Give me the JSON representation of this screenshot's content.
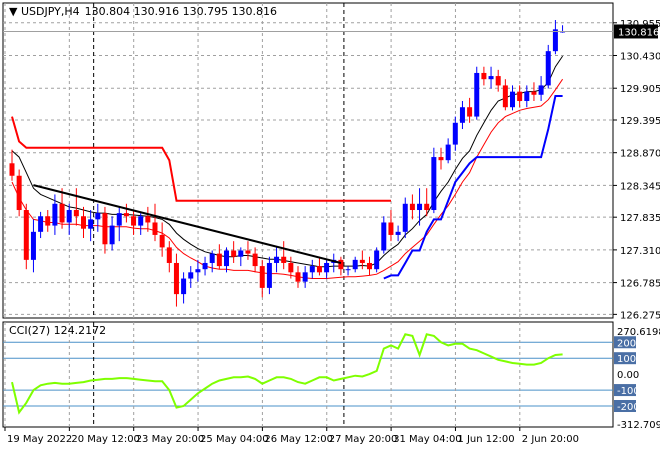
{
  "header": {
    "symbol": "USDJPY,H4",
    "ohlc": "130.804 130.916 130.795 130.816"
  },
  "chart_data": [
    {
      "type": "candlestick",
      "title": "USDJPY,H4 130.804 130.916 130.795 130.816",
      "ylim": [
        126.275,
        131.0
      ],
      "last_price": "130.816",
      "y_ticks": [
        "130.955",
        "130.430",
        "129.905",
        "129.395",
        "128.870",
        "128.345",
        "127.835",
        "127.310",
        "126.785",
        "126.275"
      ],
      "x_ticks": [
        "19 May 2022",
        "20 May 12:00",
        "23 May 20:00",
        "25 May 04:00",
        "26 May 12:00",
        "27 May 20:00",
        "31 May 04:00",
        "1 Jun 12:00",
        "2 Jun 20:00"
      ],
      "candles": [
        {
          "o": 128.7,
          "h": 128.92,
          "l": 128.42,
          "c": 128.5
        },
        {
          "o": 128.5,
          "h": 128.6,
          "l": 127.85,
          "c": 127.95
        },
        {
          "o": 127.95,
          "h": 128.05,
          "l": 127.0,
          "c": 127.15
        },
        {
          "o": 127.15,
          "h": 127.8,
          "l": 126.95,
          "c": 127.6
        },
        {
          "o": 127.6,
          "h": 127.92,
          "l": 127.5,
          "c": 127.85
        },
        {
          "o": 127.85,
          "h": 127.95,
          "l": 127.6,
          "c": 127.7
        },
        {
          "o": 127.7,
          "h": 128.2,
          "l": 127.55,
          "c": 128.05
        },
        {
          "o": 128.05,
          "h": 128.3,
          "l": 127.65,
          "c": 127.75
        },
        {
          "o": 127.75,
          "h": 128.05,
          "l": 127.55,
          "c": 127.95
        },
        {
          "o": 127.95,
          "h": 128.3,
          "l": 127.7,
          "c": 127.85
        },
        {
          "o": 127.85,
          "h": 128.0,
          "l": 127.5,
          "c": 127.65
        },
        {
          "o": 127.65,
          "h": 127.95,
          "l": 127.45,
          "c": 127.8
        },
        {
          "o": 127.8,
          "h": 128.05,
          "l": 127.6,
          "c": 127.9
        },
        {
          "o": 127.9,
          "h": 128.0,
          "l": 127.25,
          "c": 127.4
        },
        {
          "o": 127.4,
          "h": 127.85,
          "l": 127.3,
          "c": 127.7
        },
        {
          "o": 127.7,
          "h": 128.0,
          "l": 127.45,
          "c": 127.9
        },
        {
          "o": 127.9,
          "h": 128.05,
          "l": 127.75,
          "c": 127.85
        },
        {
          "o": 127.85,
          "h": 127.95,
          "l": 127.55,
          "c": 127.7
        },
        {
          "o": 127.7,
          "h": 127.9,
          "l": 127.55,
          "c": 127.85
        },
        {
          "o": 127.85,
          "h": 128.0,
          "l": 127.6,
          "c": 127.75
        },
        {
          "o": 127.75,
          "h": 128.05,
          "l": 127.45,
          "c": 127.55
        },
        {
          "o": 127.55,
          "h": 127.75,
          "l": 127.2,
          "c": 127.35
        },
        {
          "o": 127.35,
          "h": 127.45,
          "l": 126.95,
          "c": 127.1
        },
        {
          "o": 127.1,
          "h": 127.25,
          "l": 126.4,
          "c": 126.6
        },
        {
          "o": 126.6,
          "h": 126.95,
          "l": 126.45,
          "c": 126.85
        },
        {
          "o": 126.85,
          "h": 127.05,
          "l": 126.7,
          "c": 126.95
        },
        {
          "o": 126.95,
          "h": 127.15,
          "l": 126.8,
          "c": 127.0
        },
        {
          "o": 127.0,
          "h": 127.2,
          "l": 126.9,
          "c": 127.1
        },
        {
          "o": 127.1,
          "h": 127.3,
          "l": 126.95,
          "c": 127.25
        },
        {
          "o": 127.25,
          "h": 127.4,
          "l": 127.0,
          "c": 127.05
        },
        {
          "o": 127.05,
          "h": 127.35,
          "l": 126.95,
          "c": 127.3
        },
        {
          "o": 127.3,
          "h": 127.45,
          "l": 127.1,
          "c": 127.2
        },
        {
          "o": 127.2,
          "h": 127.35,
          "l": 127.05,
          "c": 127.3
        },
        {
          "o": 127.3,
          "h": 127.45,
          "l": 127.15,
          "c": 127.25
        },
        {
          "o": 127.25,
          "h": 127.35,
          "l": 126.95,
          "c": 127.05
        },
        {
          "o": 127.05,
          "h": 127.15,
          "l": 126.55,
          "c": 126.7
        },
        {
          "o": 126.7,
          "h": 127.2,
          "l": 126.6,
          "c": 127.1
        },
        {
          "o": 127.1,
          "h": 127.35,
          "l": 126.95,
          "c": 127.2
        },
        {
          "o": 127.2,
          "h": 127.45,
          "l": 127.0,
          "c": 127.1
        },
        {
          "o": 127.1,
          "h": 127.2,
          "l": 126.85,
          "c": 126.95
        },
        {
          "o": 126.95,
          "h": 127.05,
          "l": 126.7,
          "c": 126.8
        },
        {
          "o": 126.8,
          "h": 127.05,
          "l": 126.7,
          "c": 126.95
        },
        {
          "o": 126.95,
          "h": 127.15,
          "l": 126.85,
          "c": 127.05
        },
        {
          "o": 127.05,
          "h": 127.2,
          "l": 126.9,
          "c": 126.95
        },
        {
          "o": 126.95,
          "h": 127.15,
          "l": 126.85,
          "c": 127.1
        },
        {
          "o": 127.1,
          "h": 127.25,
          "l": 126.95,
          "c": 127.15
        },
        {
          "o": 127.15,
          "h": 127.2,
          "l": 126.9,
          "c": 127.0
        },
        {
          "o": 127.0,
          "h": 127.05,
          "l": 126.9,
          "c": 127.0
        },
        {
          "o": 127.0,
          "h": 127.2,
          "l": 126.95,
          "c": 127.15
        },
        {
          "o": 127.15,
          "h": 127.3,
          "l": 127.0,
          "c": 127.1
        },
        {
          "o": 127.1,
          "h": 127.2,
          "l": 126.9,
          "c": 127.0
        },
        {
          "o": 127.0,
          "h": 127.35,
          "l": 126.95,
          "c": 127.3
        },
        {
          "o": 127.3,
          "h": 127.85,
          "l": 127.25,
          "c": 127.75
        },
        {
          "o": 127.75,
          "h": 127.95,
          "l": 127.45,
          "c": 127.55
        },
        {
          "o": 127.55,
          "h": 127.7,
          "l": 127.45,
          "c": 127.6
        },
        {
          "o": 127.6,
          "h": 128.15,
          "l": 127.5,
          "c": 128.05
        },
        {
          "o": 128.05,
          "h": 128.2,
          "l": 127.8,
          "c": 127.95
        },
        {
          "o": 127.95,
          "h": 128.3,
          "l": 127.7,
          "c": 128.05
        },
        {
          "o": 128.05,
          "h": 128.3,
          "l": 127.85,
          "c": 127.95
        },
        {
          "o": 127.95,
          "h": 128.95,
          "l": 127.9,
          "c": 128.8
        },
        {
          "o": 128.8,
          "h": 128.95,
          "l": 128.6,
          "c": 128.75
        },
        {
          "o": 128.75,
          "h": 129.1,
          "l": 128.7,
          "c": 129.0
        },
        {
          "o": 129.0,
          "h": 129.45,
          "l": 128.9,
          "c": 129.35
        },
        {
          "o": 129.35,
          "h": 129.7,
          "l": 129.25,
          "c": 129.6
        },
        {
          "o": 129.6,
          "h": 129.75,
          "l": 129.35,
          "c": 129.45
        },
        {
          "o": 129.45,
          "h": 130.25,
          "l": 129.4,
          "c": 130.15
        },
        {
          "o": 130.15,
          "h": 130.25,
          "l": 129.95,
          "c": 130.05
        },
        {
          "o": 130.05,
          "h": 130.25,
          "l": 129.9,
          "c": 130.1
        },
        {
          "o": 130.1,
          "h": 130.2,
          "l": 129.85,
          "c": 129.95
        },
        {
          "o": 129.95,
          "h": 130.05,
          "l": 129.55,
          "c": 129.6
        },
        {
          "o": 129.6,
          "h": 129.95,
          "l": 129.55,
          "c": 129.85
        },
        {
          "o": 129.85,
          "h": 129.95,
          "l": 129.6,
          "c": 129.7
        },
        {
          "o": 129.7,
          "h": 129.95,
          "l": 129.6,
          "c": 129.85
        },
        {
          "o": 129.85,
          "h": 130.0,
          "l": 129.7,
          "c": 129.8
        },
        {
          "o": 129.8,
          "h": 130.1,
          "l": 129.7,
          "c": 129.95
        },
        {
          "o": 129.95,
          "h": 130.6,
          "l": 129.9,
          "c": 130.5
        },
        {
          "o": 130.5,
          "h": 131.0,
          "l": 130.45,
          "c": 130.85
        },
        {
          "o": 130.804,
          "h": 130.916,
          "l": 130.795,
          "c": 130.816
        }
      ],
      "lines": [
        {
          "color": "#000000",
          "values": [
            128.9,
            128.8,
            128.55,
            128.3,
            128.2,
            128.15,
            128.1,
            128.05,
            128.0,
            127.98,
            127.95,
            127.92,
            127.9,
            127.9,
            127.88,
            127.88,
            127.88,
            127.87,
            127.86,
            127.85,
            127.83,
            127.8,
            127.72,
            127.58,
            127.48,
            127.4,
            127.33,
            127.28,
            127.25,
            127.22,
            127.2,
            127.2,
            127.22,
            127.22,
            127.2,
            127.18,
            127.16,
            127.16,
            127.14,
            127.12,
            127.1,
            127.08,
            127.06,
            127.04,
            127.04,
            127.05,
            127.05,
            127.05,
            127.05,
            127.06,
            127.05,
            127.1,
            127.22,
            127.32,
            127.4,
            127.55,
            127.65,
            127.78,
            127.88,
            128.08,
            128.25,
            128.4,
            128.6,
            128.78,
            128.9,
            129.15,
            129.35,
            129.55,
            129.7,
            129.75,
            129.8,
            129.82,
            129.85,
            129.85,
            129.88,
            130.0,
            130.25,
            130.42
          ]
        },
        {
          "color": "#ff0000",
          "values": [
            128.4,
            128.15,
            127.95,
            127.8,
            127.78,
            127.75,
            127.75,
            127.72,
            127.72,
            127.72,
            127.7,
            127.7,
            127.7,
            127.68,
            127.68,
            127.68,
            127.68,
            127.66,
            127.65,
            127.65,
            127.62,
            127.58,
            127.5,
            127.35,
            127.25,
            127.18,
            127.12,
            127.05,
            127.02,
            127.0,
            127.0,
            126.98,
            126.98,
            126.98,
            126.96,
            126.94,
            126.93,
            126.93,
            126.92,
            126.9,
            126.88,
            126.86,
            126.85,
            126.85,
            126.85,
            126.86,
            126.87,
            126.88,
            126.88,
            126.89,
            126.9,
            126.92,
            126.98,
            127.05,
            127.12,
            127.25,
            127.35,
            127.45,
            127.55,
            127.72,
            127.88,
            128.02,
            128.2,
            128.4,
            128.55,
            128.8,
            129.0,
            129.2,
            129.35,
            129.45,
            129.5,
            129.55,
            129.58,
            129.6,
            129.62,
            129.72,
            129.88,
            130.05
          ]
        },
        {
          "color": "#0000ff",
          "values": [
            null,
            null,
            null,
            null,
            null,
            null,
            null,
            null,
            null,
            null,
            null,
            null,
            null,
            null,
            null,
            null,
            null,
            null,
            null,
            null,
            null,
            null,
            null,
            null,
            null,
            null,
            null,
            null,
            null,
            null,
            null,
            null,
            null,
            null,
            null,
            null,
            null,
            null,
            null,
            null,
            null,
            null,
            null,
            null,
            null,
            null,
            null,
            null,
            null,
            null,
            null,
            null,
            126.85,
            126.9,
            126.9,
            127.1,
            127.3,
            127.3,
            127.6,
            127.8,
            127.8,
            128.1,
            128.4,
            128.55,
            128.7,
            128.8,
            128.8,
            128.8,
            128.8,
            128.8,
            128.8,
            128.8,
            128.8,
            128.8,
            128.8,
            129.25,
            129.78,
            129.78
          ]
        },
        {
          "color": "#ff0000",
          "values": [
            129.45,
            129.05,
            128.95,
            128.95,
            128.95,
            128.95,
            128.95,
            128.95,
            128.95,
            128.95,
            128.95,
            128.95,
            128.95,
            128.95,
            128.95,
            128.95,
            128.95,
            128.95,
            128.95,
            128.95,
            128.95,
            128.95,
            128.75,
            128.1,
            128.1,
            128.1,
            128.1,
            128.1,
            128.1,
            128.1,
            128.1,
            128.1,
            128.1,
            128.1,
            128.1,
            128.1,
            128.1,
            128.1,
            128.1,
            128.1,
            128.1,
            128.1,
            128.1,
            128.1,
            128.1,
            128.1,
            128.1,
            128.1,
            128.1,
            128.1,
            128.1,
            128.1,
            128.1,
            128.1,
            null,
            null,
            null,
            null,
            null,
            null,
            null,
            null,
            null,
            null,
            null,
            null,
            null,
            null,
            null,
            null,
            null,
            null,
            null,
            null,
            null,
            null,
            null,
            null
          ]
        }
      ],
      "trendline": {
        "color": "#000000",
        "from": {
          "i": 3,
          "v": 128.35
        },
        "to": {
          "i": 46,
          "v": 127.1
        }
      }
    },
    {
      "type": "line",
      "title": "CCI(27) 124.2172",
      "ylim": [
        -312.7092,
        270.6198
      ],
      "y_ticks": [
        "270.6198",
        "200",
        "100",
        "0.00",
        "-100",
        "-200",
        "-312.7092"
      ],
      "levels": [
        200,
        100,
        -100,
        -200
      ],
      "series": [
        {
          "color": "#7fff00",
          "values": [
            -50,
            -240,
            -180,
            -100,
            -70,
            -60,
            -55,
            -60,
            -60,
            -55,
            -50,
            -40,
            -35,
            -30,
            -30,
            -25,
            -25,
            -30,
            -35,
            -40,
            -45,
            -45,
            -100,
            -210,
            -200,
            -160,
            -120,
            -90,
            -60,
            -40,
            -30,
            -20,
            -20,
            -15,
            -30,
            -60,
            -40,
            -20,
            -20,
            -30,
            -50,
            -60,
            -40,
            -20,
            -20,
            -40,
            -30,
            -20,
            -10,
            -15,
            0,
            20,
            160,
            180,
            160,
            250,
            240,
            120,
            250,
            240,
            200,
            180,
            190,
            190,
            160,
            150,
            130,
            110,
            90,
            80,
            70,
            65,
            60,
            60,
            70,
            100,
            120,
            124
          ]
        }
      ]
    }
  ]
}
